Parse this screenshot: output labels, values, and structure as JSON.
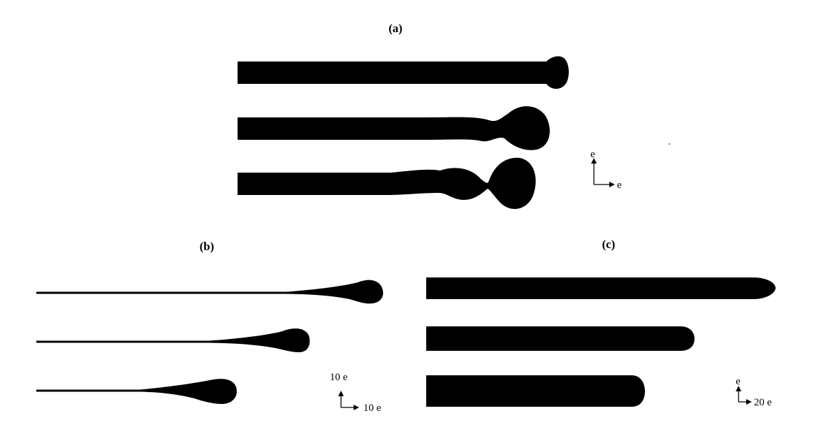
{
  "panels": {
    "a": {
      "label": "(a)"
    },
    "b": {
      "label": "(b)"
    },
    "c": {
      "label": "(c)"
    }
  },
  "scales": {
    "a": {
      "vertical": "e",
      "horizontal": "e"
    },
    "b": {
      "vertical": "10 e",
      "horizontal": "10 e"
    },
    "c": {
      "vertical": "e",
      "horizontal": "20 e"
    }
  },
  "colors": {
    "shape": "#000000",
    "background": "#ffffff"
  }
}
